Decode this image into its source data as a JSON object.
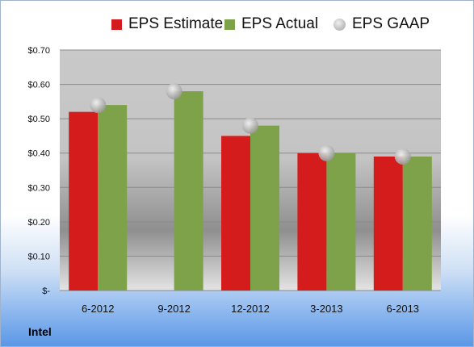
{
  "company": "Intel",
  "legend": {
    "estimate": "EPS Estimate",
    "actual": "EPS Actual",
    "gaap": "EPS GAAP"
  },
  "colors": {
    "estimate": "#d41c1c",
    "actual": "#7ea24a",
    "gaap": "#bfbfbf"
  },
  "chart_data": {
    "type": "bar",
    "categories": [
      "6-2012",
      "9-2012",
      "12-2012",
      "3-2013",
      "6-2013"
    ],
    "series": [
      {
        "name": "EPS Estimate",
        "values": [
          0.52,
          null,
          0.45,
          0.4,
          0.39
        ]
      },
      {
        "name": "EPS Actual",
        "values": [
          0.54,
          0.58,
          0.48,
          0.4,
          0.39
        ]
      },
      {
        "name": "EPS GAAP",
        "type": "scatter",
        "values": [
          0.54,
          0.58,
          0.48,
          0.4,
          0.39
        ]
      }
    ],
    "y_ticks": [
      0,
      0.1,
      0.2,
      0.3,
      0.4,
      0.5,
      0.6,
      0.7
    ],
    "y_tick_labels": [
      "$-",
      "$0.10",
      "$0.20",
      "$0.30",
      "$0.40",
      "$0.50",
      "$0.60",
      "$0.70"
    ],
    "ylim": [
      0,
      0.7
    ],
    "grid": true,
    "legend_position": "top"
  }
}
